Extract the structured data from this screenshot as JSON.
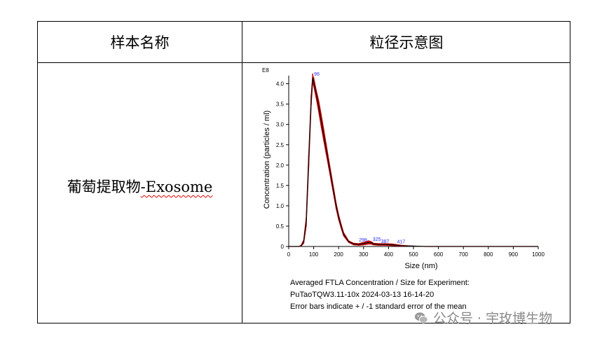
{
  "table": {
    "col1_header": "样本名称",
    "col2_header": "粒径示意图",
    "sample_name_cn": "葡萄提取物",
    "sample_name_en": "-Exosome"
  },
  "chart_data": {
    "type": "line",
    "exponent_label": "E8",
    "xlabel": "Size (nm)",
    "ylabel": "Concentration (particles / ml)",
    "xlim": [
      0,
      1000
    ],
    "ylim": [
      0,
      4.2
    ],
    "x_ticks": [
      0,
      100,
      200,
      300,
      400,
      500,
      600,
      700,
      800,
      900,
      1000
    ],
    "y_ticks": [
      0,
      0.5,
      1.0,
      1.5,
      2.0,
      2.5,
      3.0,
      3.5,
      4.0
    ],
    "y_tick_labels": [
      "0",
      "0.5",
      "1.0",
      "1.5",
      "2.0",
      "2.5",
      "3.0",
      "3.5",
      "4.0"
    ],
    "series": [
      {
        "x": [
          0,
          40,
          50,
          60,
          70,
          80,
          90,
          96,
          100,
          110,
          120,
          130,
          140,
          150,
          160,
          170,
          180,
          190,
          200,
          210,
          220,
          240,
          260,
          280,
          300,
          320,
          330,
          340,
          360,
          387,
          417,
          450,
          500,
          550,
          600,
          700,
          800,
          900,
          1000
        ],
        "y": [
          0,
          0,
          0.02,
          0.12,
          0.6,
          2.1,
          3.6,
          4.15,
          4.05,
          3.75,
          3.45,
          3.1,
          2.75,
          2.4,
          2.05,
          1.7,
          1.35,
          1.0,
          0.72,
          0.5,
          0.3,
          0.12,
          0.06,
          0.05,
          0.07,
          0.1,
          0.09,
          0.06,
          0.05,
          0.05,
          0.04,
          0.02,
          0.01,
          0,
          0,
          0,
          0,
          0,
          0
        ],
        "error": [
          0,
          0,
          0.01,
          0.04,
          0.1,
          0.15,
          0.12,
          0.1,
          0.1,
          0.1,
          0.14,
          0.15,
          0.14,
          0.12,
          0.1,
          0.09,
          0.08,
          0.07,
          0.06,
          0.05,
          0.04,
          0.02,
          0.02,
          0.02,
          0.03,
          0.04,
          0.03,
          0.02,
          0.02,
          0.02,
          0.02,
          0.01,
          0,
          0,
          0,
          0,
          0,
          0,
          0
        ]
      }
    ],
    "annotations": [
      {
        "text": "96",
        "x": 96,
        "y": 4.15
      },
      {
        "text": "298",
        "x": 298,
        "y": 0.07
      },
      {
        "text": "325",
        "x": 325,
        "y": 0.1
      },
      {
        "text": "387",
        "x": 387,
        "y": 0.05
      },
      {
        "text": "417",
        "x": 417,
        "y": 0.04
      }
    ],
    "colors": {
      "line": "#111111",
      "error_band": "#cc0000",
      "annotation": "#2a2aff"
    }
  },
  "caption": {
    "line1": "Averaged FTLA Concentration / Size for Experiment:",
    "line2": "PuTaoTQW3.11-10x 2024-03-13 16-14-20",
    "line3": "Error bars indicate + / -1 standard error of the mean"
  },
  "watermark": {
    "text": "公众号 · 宇玫博生物",
    "icon": "wechat-icon"
  }
}
